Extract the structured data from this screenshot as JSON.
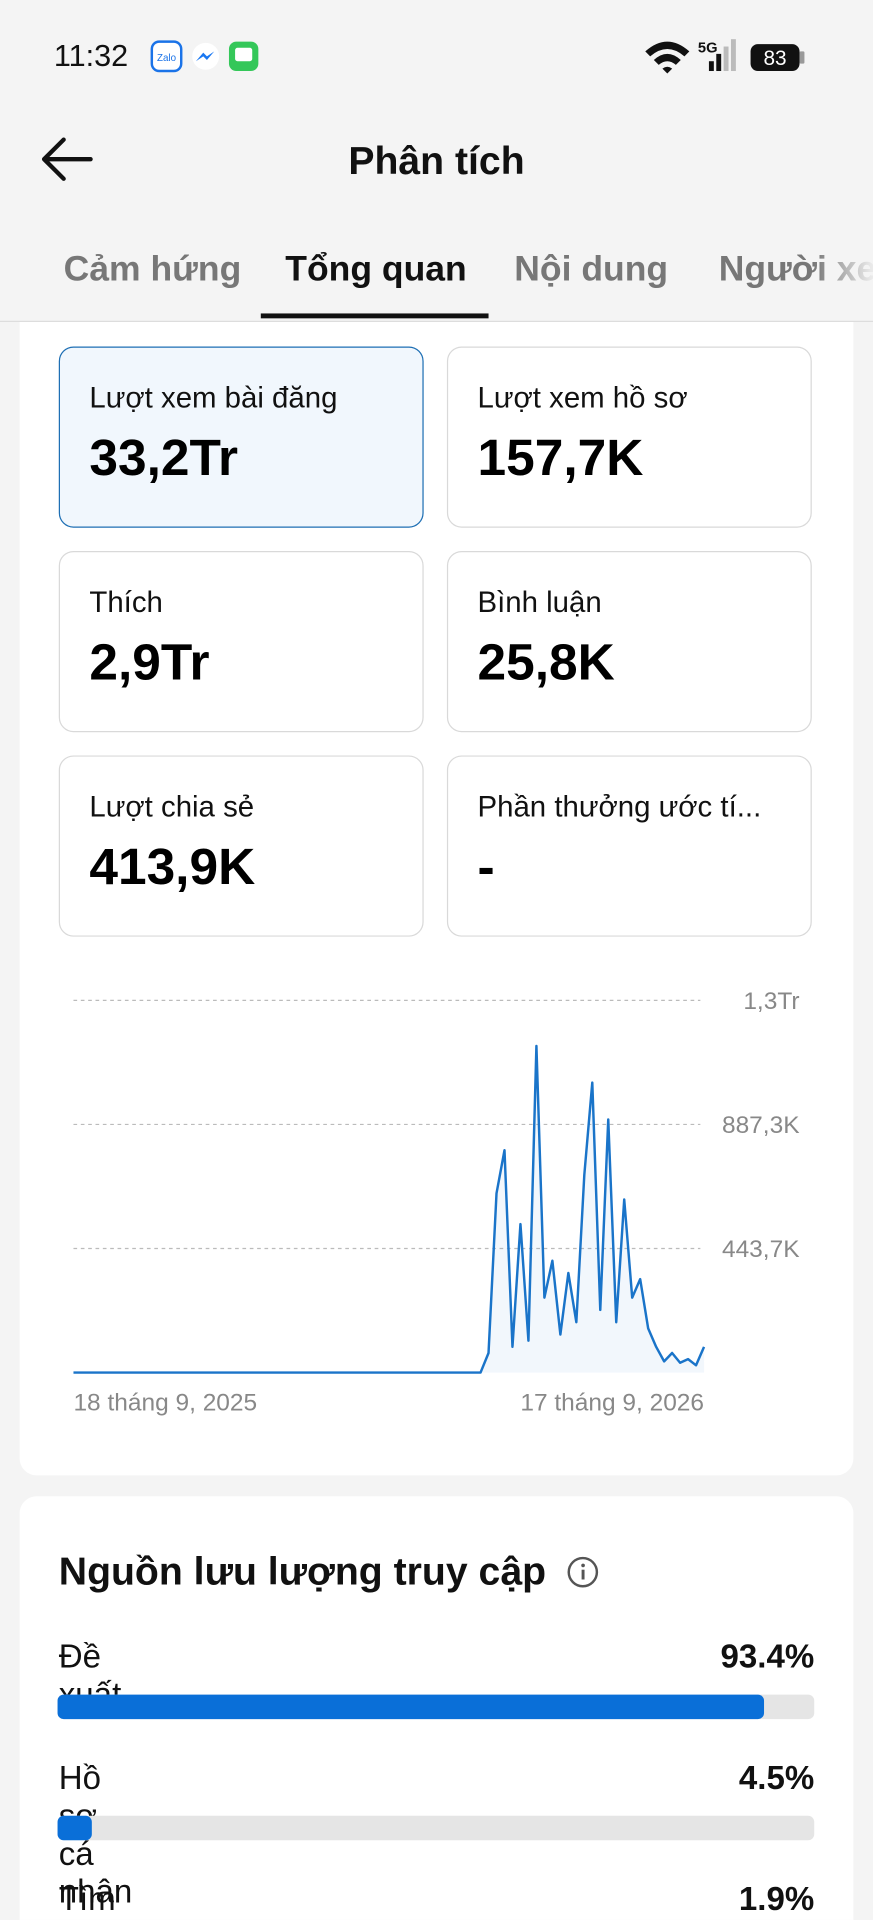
{
  "status_bar": {
    "time": "11:32",
    "battery": "83",
    "network": "5G"
  },
  "header": {
    "title": "Phân tích"
  },
  "tabs": [
    "Cảm hứng",
    "Tổng quan",
    "Nội dung",
    "Người xe"
  ],
  "metrics": [
    {
      "label": "Lượt xem bài đăng",
      "value": "33,2Tr"
    },
    {
      "label": "Lượt xem hồ sơ",
      "value": "157,7K"
    },
    {
      "label": "Thích",
      "value": "2,9Tr"
    },
    {
      "label": "Bình luận",
      "value": "25,8K"
    },
    {
      "label": "Lượt chia sẻ",
      "value": "413,9K"
    },
    {
      "label": "Phần thưởng ước tí...",
      "value": "-"
    }
  ],
  "chart_data": {
    "type": "line",
    "color": "#1a74c9",
    "grid": true,
    "categories": [
      "18 tháng 9, 2025",
      null,
      null,
      null,
      null,
      null,
      null,
      null,
      null,
      null,
      null,
      null,
      null,
      null,
      null,
      null,
      null,
      null,
      null,
      null,
      null,
      null,
      null,
      null,
      null,
      null,
      null,
      null,
      null,
      null,
      null,
      null,
      null,
      null,
      null,
      null,
      null,
      null,
      null,
      null,
      null,
      null,
      null,
      null,
      null,
      null,
      null,
      null,
      null,
      null,
      null,
      null,
      null,
      null,
      null,
      null,
      null,
      null,
      null,
      null,
      null,
      null,
      null,
      null,
      null,
      null,
      null,
      null,
      null,
      null,
      null,
      null,
      null,
      null,
      null,
      null,
      null,
      null,
      null,
      "17 tháng 9, 2026"
    ],
    "values": [
      0,
      0,
      0,
      0,
      0,
      0,
      0,
      0,
      0,
      0,
      0,
      0,
      0,
      0,
      0,
      0,
      0,
      0,
      0,
      0,
      0,
      0,
      0,
      0,
      0,
      0,
      0,
      0,
      0,
      0,
      0,
      0,
      0,
      0,
      0,
      0,
      0,
      0,
      0,
      0,
      0,
      0,
      0,
      0,
      0,
      0,
      0,
      0,
      0,
      0,
      0,
      0,
      70000,
      641000,
      795000,
      92000,
      531000,
      114000,
      1168000,
      268000,
      400000,
      136000,
      356000,
      180000,
      707000,
      1037000,
      224000,
      905000,
      180000,
      619000,
      268000,
      334000,
      158000,
      92000,
      40000,
      70000,
      35000,
      48000,
      26000,
      92000
    ],
    "ylim": [
      0,
      1331000
    ],
    "yticks": [
      {
        "value": 443700,
        "label": "443,7K"
      },
      {
        "value": 887300,
        "label": "887,3K"
      },
      {
        "value": 1331000,
        "label": "1,3Tr"
      }
    ]
  },
  "traffic": {
    "title": "Nguồn lưu lượng truy cập",
    "xlim": [
      0,
      100
    ],
    "items": [
      {
        "name": "Đề xuất",
        "value": 93.4,
        "value_label": "93.4%"
      },
      {
        "name": "Hồ sơ cá nhân",
        "value": 4.5,
        "value_label": "4.5%"
      },
      {
        "name": "Tìm kiếm",
        "value": 1.9,
        "value_label": "1.9%"
      }
    ]
  }
}
